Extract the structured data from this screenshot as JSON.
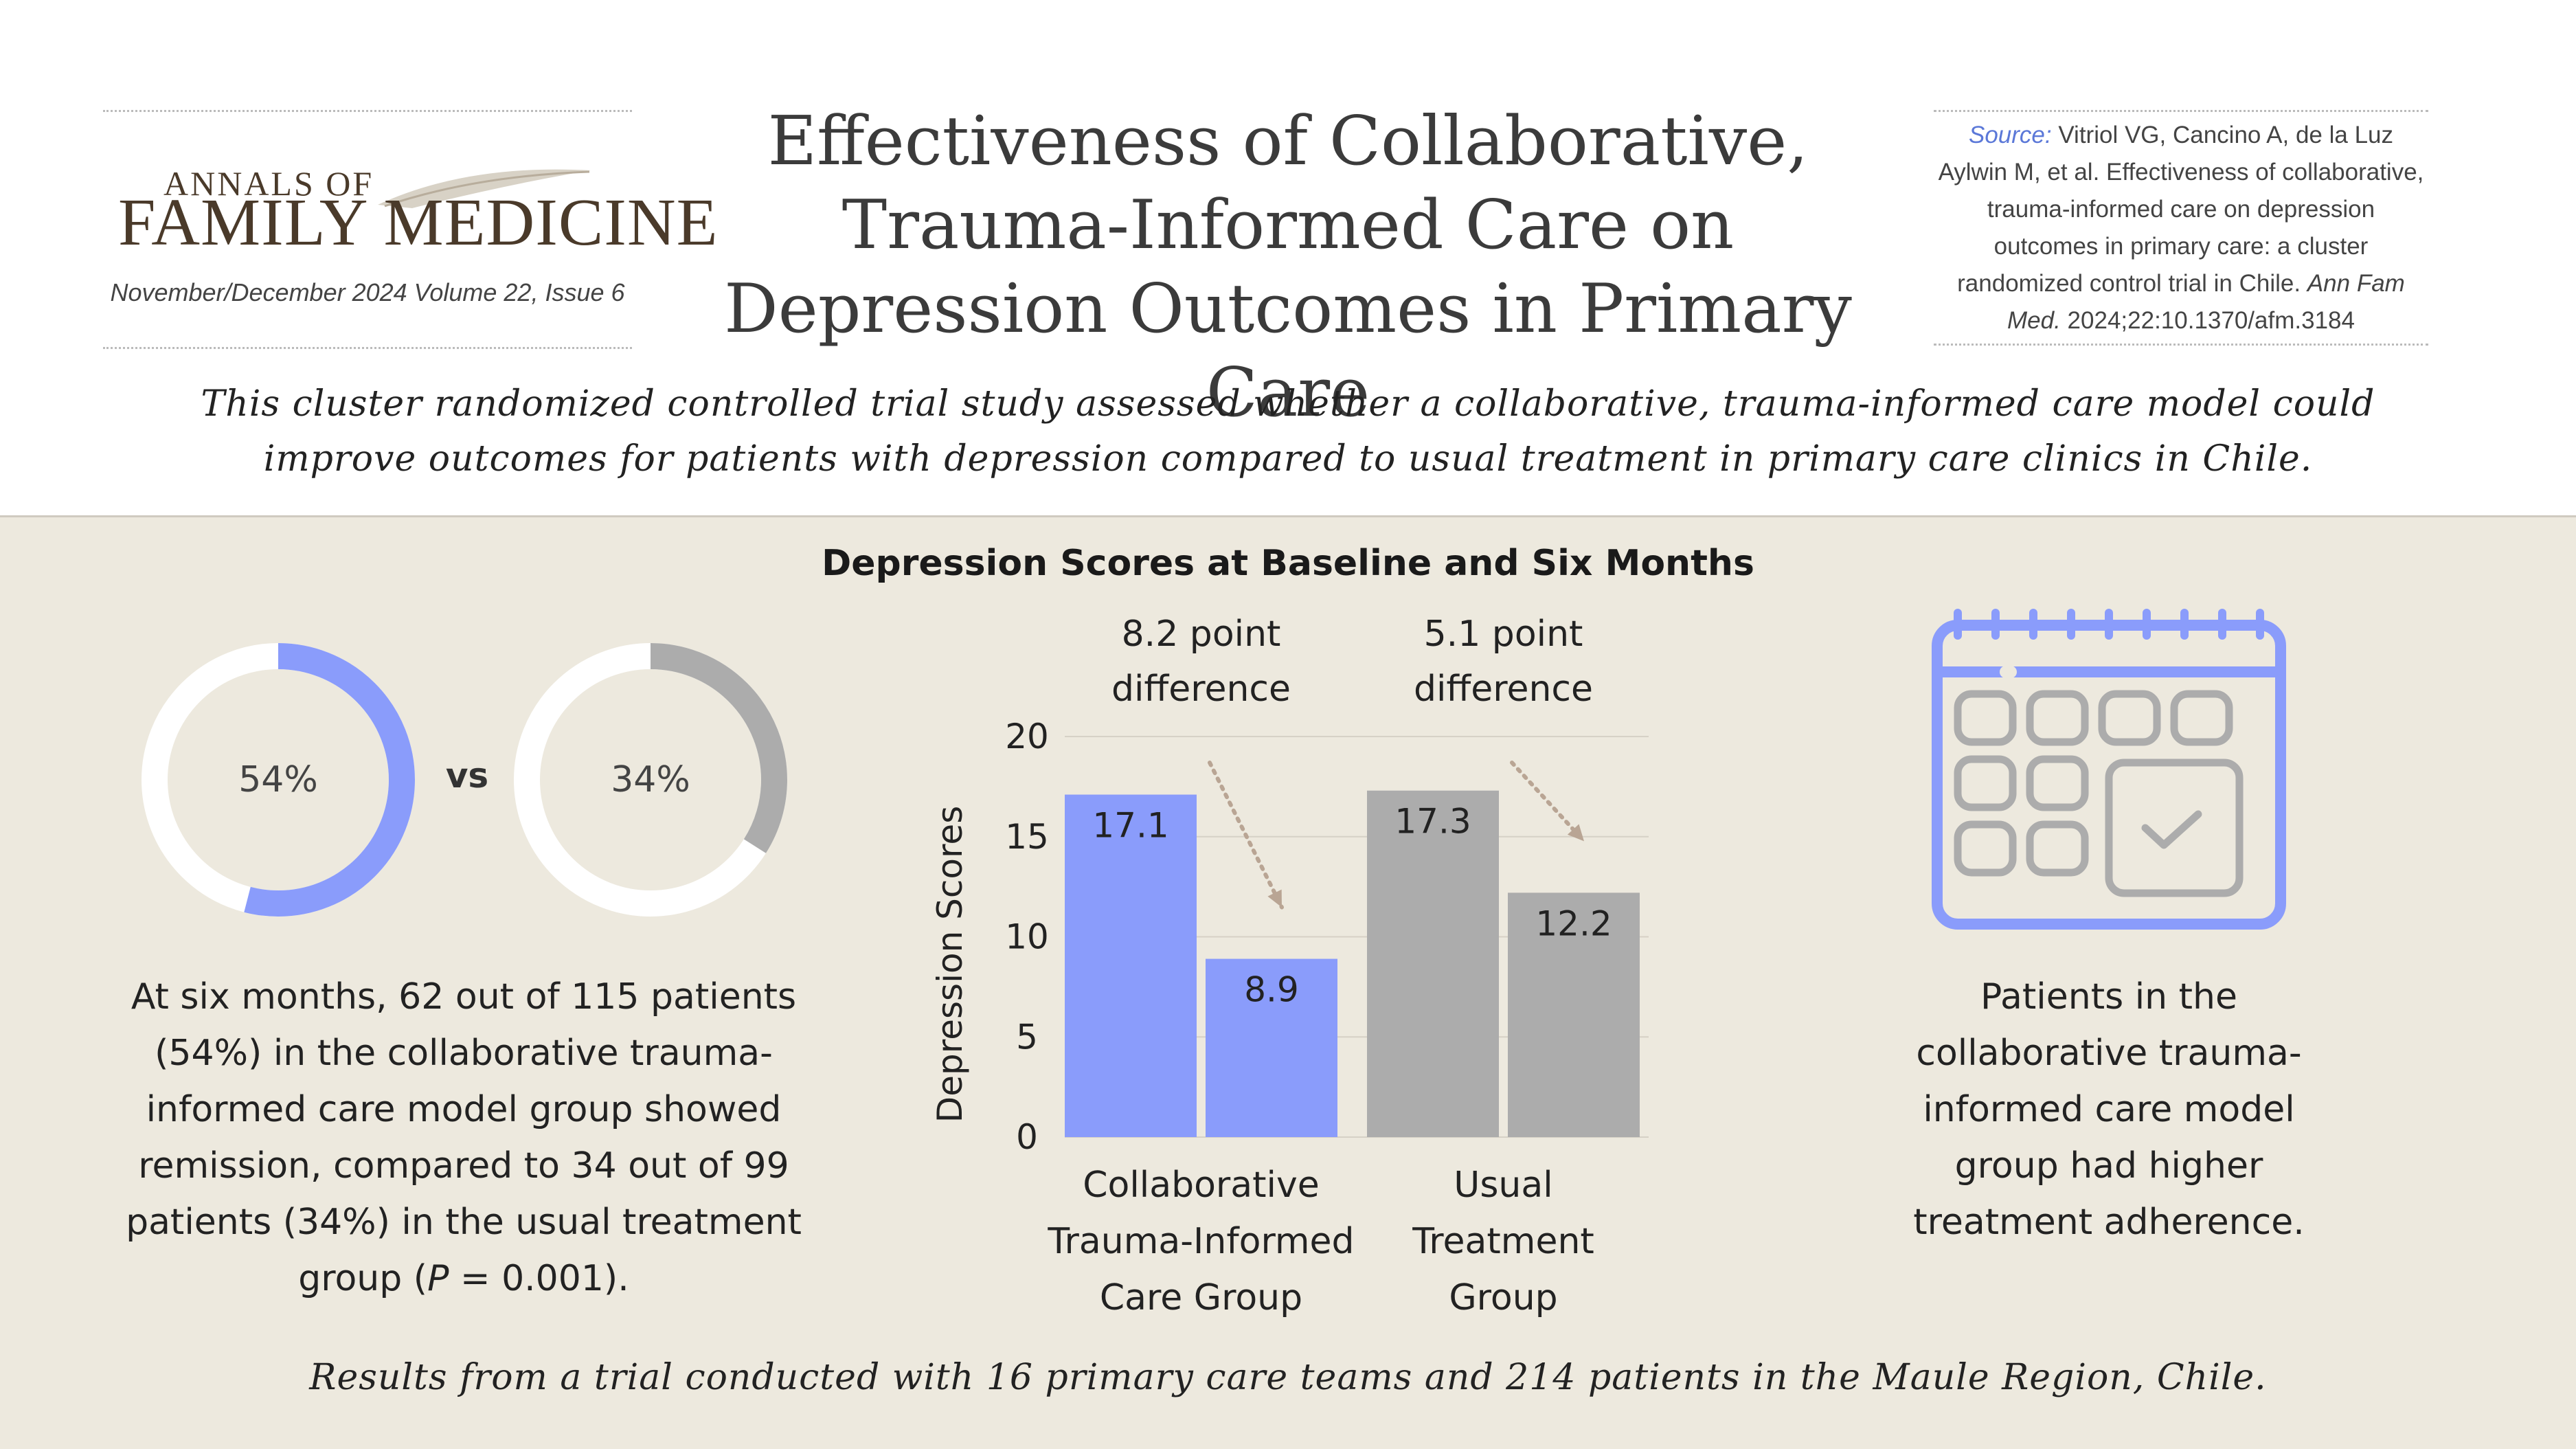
{
  "journal": {
    "logo_top": "ANNALS OF",
    "logo_main": "FAMILY MEDICINE",
    "issue": "November/December 2024 Volume 22, Issue 6"
  },
  "title": "Effectiveness of Collaborative, Trauma-Informed Care on Depression Outcomes in Primary Care",
  "source": {
    "label": "Source:",
    "text": " Vitriol VG, Cancino A, de la Luz Aylwin M, et al. Effectiveness of collaborative, trauma-informed care on depression outcomes in primary care: a cluster randomized control trial in Chile. ",
    "journal": "Ann Fam Med.",
    "citation": " 2024;22:10.1370/afm.3184"
  },
  "intro": "This cluster randomized controlled trial study assessed whether a collaborative, trauma-informed care model could improve outcomes for patients with depression compared to usual treatment in primary care clinics in Chile.",
  "remission": {
    "collab_label": "54%",
    "collab_value": 54,
    "usual_label": "34%",
    "usual_value": 34,
    "vs": "vs",
    "colors": {
      "collab": "#8a9cfb",
      "usual": "#acacac",
      "track": "#ffffff"
    },
    "text_before": "At six months, 62 out of 115 patients (54%) in the collaborative trauma-informed care model group showed remission, compared to 34 out of 99 patients (34%) in the usual treatment group (",
    "text_p": "P",
    "text_after": " = 0.001)."
  },
  "chart_data": {
    "type": "bar",
    "title": "Depression Scores at Baseline and Six Months",
    "ylabel": "Depression Scores",
    "ylim": [
      0,
      20
    ],
    "yticks": [
      "0",
      "5",
      "10",
      "15",
      "20"
    ],
    "groups": [
      {
        "name_lines": [
          "Collaborative",
          "Trauma-Informed",
          "Care Group"
        ],
        "values": [
          17.1,
          8.9
        ],
        "labels": [
          "17.1",
          "8.9"
        ],
        "color": "#8a9cfb",
        "difference": [
          "8.2 point",
          "difference"
        ]
      },
      {
        "name_lines": [
          "Usual",
          "Treatment",
          "Group"
        ],
        "values": [
          17.3,
          12.2
        ],
        "labels": [
          "17.3",
          "12.2"
        ],
        "color": "#acacac",
        "difference": [
          "5.1 point",
          "difference"
        ]
      }
    ],
    "grid": true
  },
  "adherence": {
    "icon": "calendar-check-icon",
    "color": "#8a9cfb",
    "text": "Patients in the collaborative trauma-informed care model group had higher treatment adherence."
  },
  "footer": "Results from a trial conducted with 16 primary care teams and 214 patients in the Maule Region, Chile."
}
